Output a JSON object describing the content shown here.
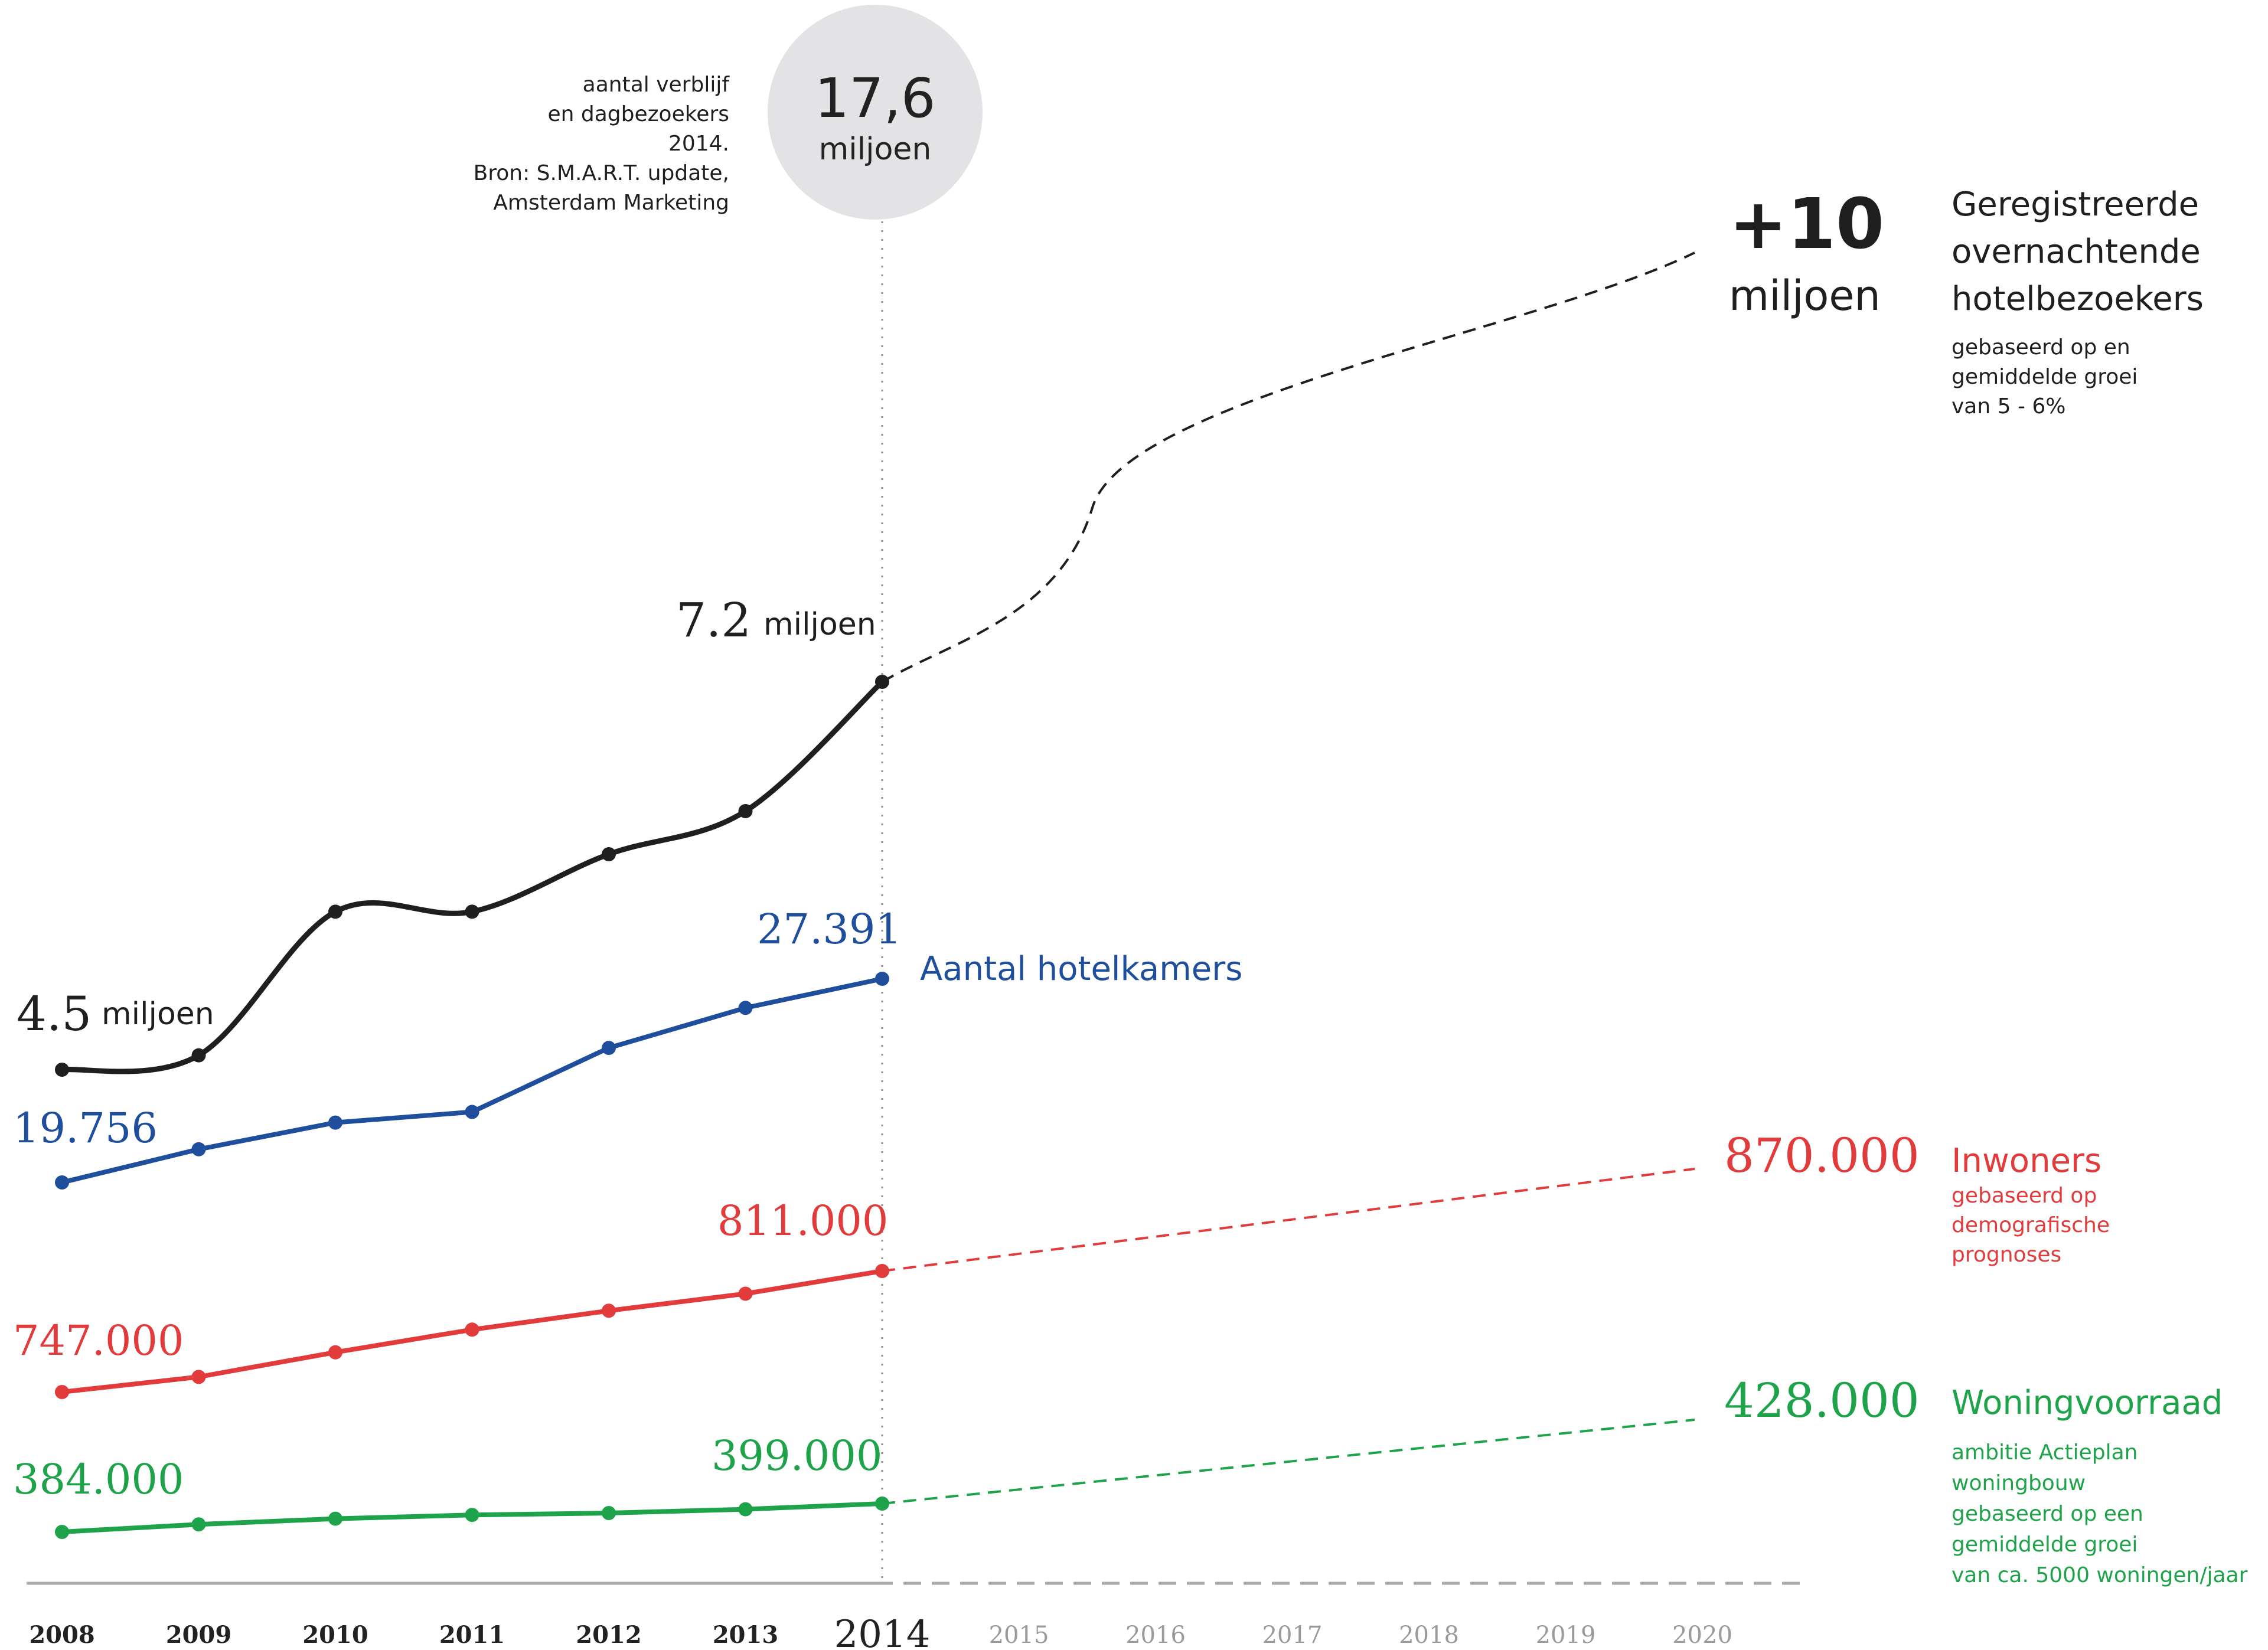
{
  "chart_data": {
    "type": "line",
    "x_actual": [
      2008,
      2009,
      2010,
      2011,
      2012,
      2013,
      2014
    ],
    "x_axis_labels": [
      "2008",
      "2009",
      "2010",
      "2011",
      "2012",
      "2013",
      "2014",
      "2015",
      "2016",
      "2017",
      "2018",
      "2019",
      "2020"
    ],
    "highlight_year": "2014",
    "colors": {
      "visitors": "#1f1f1f",
      "rooms": "#1f4e9c",
      "residents": "#e23b3b",
      "housing": "#1fa34a",
      "axis": "#aaaaaa",
      "circle": "#e3e3e5"
    },
    "series": [
      {
        "name": "Geregistreerde overnachtende hotelbezoekers",
        "key": "visitors",
        "values": [
          4.5,
          4.6,
          5.6,
          5.6,
          6.0,
          6.3,
          7.2
        ],
        "projection": {
          "from_year": 2014,
          "to_year": 2020,
          "from_value": 7.2,
          "to_value": 10
        },
        "labels": {
          "start_value": "4.5",
          "start_unit": "miljoen",
          "end_value": "7.2",
          "end_unit": "miljoen",
          "projection_value": "+10",
          "projection_unit": "miljoen",
          "note": [
            "gebaseerd op en",
            "gemiddelde groei",
            "van 5 - 6%"
          ],
          "title_lines": [
            "Geregistreerde",
            "overnachtende",
            "hotelbezoekers"
          ]
        }
      },
      {
        "name": "Aantal hotelkamers",
        "key": "rooms",
        "values": [
          19756,
          21000,
          22000,
          22400,
          24800,
          26300,
          27391
        ],
        "labels": {
          "start": "19.756",
          "end": "27.391",
          "title": "Aantal hotelkamers"
        }
      },
      {
        "name": "Inwoners",
        "key": "residents",
        "values": [
          747000,
          755000,
          768000,
          780000,
          790000,
          799000,
          811000
        ],
        "projection": {
          "from_year": 2014,
          "to_year": 2020,
          "from_value": 811000,
          "to_value": 870000
        },
        "labels": {
          "start": "747.000",
          "end": "811.000",
          "projection": "870.000",
          "title": "Inwoners",
          "note": [
            "gebaseerd op",
            "demografische",
            "prognoses"
          ]
        }
      },
      {
        "name": "Woningvoorraad",
        "key": "housing",
        "values": [
          384000,
          388000,
          391000,
          393000,
          394000,
          396000,
          399000
        ],
        "projection": {
          "from_year": 2014,
          "to_year": 2020,
          "from_value": 399000,
          "to_value": 428000
        },
        "labels": {
          "start": "384.000",
          "end": "399.000",
          "projection": "428.000",
          "title": "Woningvoorraad",
          "note": [
            "ambitie Actieplan",
            "woningbouw",
            "gebaseerd op een",
            "gemiddelde groei",
            "van ca. 5000 woningen/jaar"
          ]
        }
      }
    ],
    "total_visitors": {
      "value": "17,6",
      "unit": "miljoen",
      "note": [
        "aantal verblijf",
        "en dagbezoekers",
        "2014.",
        "Bron: S.M.A.R.T. update,",
        "Amsterdam Marketing"
      ]
    }
  }
}
